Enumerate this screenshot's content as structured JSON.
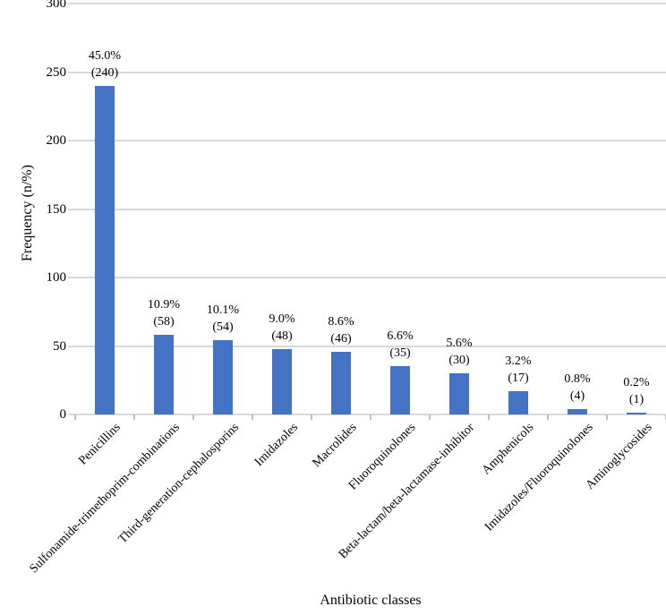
{
  "chart_data": {
    "type": "bar",
    "categories": [
      "Penicillins",
      "Sulfonamide-trimethoprim-combinations",
      "Third-generation-cephalosporins",
      "Imidazoles",
      "Macrolides",
      "Fluoroquinolones",
      "Beta-lactam/beta-lactamase-inhibitor",
      "Amphenicols",
      "Imidazoles/Fluoroquinolones",
      "Aminoglycosides"
    ],
    "values": [
      240,
      58,
      54,
      48,
      46,
      35,
      30,
      17,
      4,
      1
    ],
    "percentages": [
      "45.0%",
      "10.9%",
      "10.1%",
      "9.0%",
      "8.6%",
      "6.6%",
      "5.6%",
      "3.2%",
      "0.8%",
      "0.2%"
    ],
    "title": "",
    "xlabel": "Antibiotic classes",
    "ylabel": "Frequency (n/%)",
    "ylim": [
      0,
      300
    ],
    "yticks": [
      0,
      50,
      100,
      150,
      200,
      250,
      300
    ],
    "grid": true,
    "legend": "none",
    "bar_color": "#4472c4",
    "gridline_color": "#d9d9d9",
    "text_color": "#000000"
  }
}
